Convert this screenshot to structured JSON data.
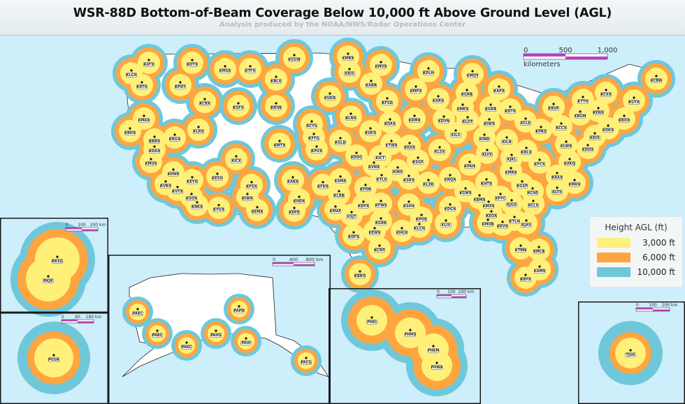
{
  "title": "WSR-88D Bottom-of-Beam Coverage Below 10,000 ft Above Ground Level (AGL)",
  "subtitle": "Analysis produced by the NOAA/NWS/Radar Operations Center",
  "legend": {
    "title": "Height AGL (ft)",
    "items": [
      {
        "label": "3,000 ft",
        "color": "#fff07a"
      },
      {
        "label": "6,000 ft",
        "color": "#ffa53f"
      },
      {
        "label": "10,000 ft",
        "color": "#6fc7da"
      }
    ]
  },
  "colors": {
    "ocean": "#cdeefb",
    "uncovered_land": "#ffffff",
    "scale_bar": "#c040c8"
  },
  "scale_bars": {
    "conus": {
      "ticks": [
        "0",
        "500",
        "1,000"
      ],
      "unit": "kilometers"
    },
    "korea": {
      "ticks": [
        "0",
        "100",
        "200 km"
      ]
    },
    "guam": {
      "ticks": [
        "0",
        "90",
        "180 km"
      ]
    },
    "alaska": {
      "ticks": [
        "0",
        "400",
        "800 km"
      ]
    },
    "hawaii": {
      "ticks": [
        "0",
        "100",
        "200 km"
      ]
    },
    "puerto_rico": {
      "ticks": [
        "0",
        "100",
        "200 km"
      ]
    },
    "southeast": {
      "ticks": [
        "0",
        "100",
        "200 km"
      ]
    }
  },
  "stations": {
    "conus": [
      "KATX",
      "KLGX",
      "KOTX",
      "KRTX",
      "KPDT",
      "KMSX",
      "KTFX",
      "KGGW",
      "KBLX",
      "KCBX",
      "KSFX",
      "KRIW",
      "KMAX",
      "KBHX",
      "KLRX",
      "KRGX",
      "KBBX",
      "KDAX",
      "KMUX",
      "KHNX",
      "KVBX",
      "KVTX",
      "KEYX",
      "KSOX",
      "KNKX",
      "KYUX",
      "KESX",
      "KICX",
      "KFSX",
      "KIWA",
      "KEMX",
      "KABX",
      "KHDX",
      "KEPZ",
      "KMTX",
      "KFTG",
      "KPUX",
      "KCYS",
      "KMBX",
      "KBIS",
      "KMVX",
      "KABR",
      "KUDX",
      "KFSD",
      "KMPX",
      "KDLH",
      "KMQT",
      "KGRB",
      "KARX",
      "KMKX",
      "KLNX",
      "KOAX",
      "KDMX",
      "KDVN",
      "KLOT",
      "KUEX",
      "KGLD",
      "KTWX",
      "KEAX",
      "KILX",
      "KLSX",
      "KAPX",
      "KGRR",
      "KDTX",
      "KIWX",
      "KCLE",
      "KBUF",
      "KTYX",
      "KCXX",
      "KGYX",
      "KCBW",
      "KENX",
      "KBGM",
      "KBOX",
      "KOKX",
      "KPBZ",
      "KCCX",
      "KDIX",
      "KDOX",
      "KLWX",
      "KIND",
      "KILN",
      "KRLX",
      "KLVX",
      "KJKL",
      "KFCX",
      "KAKQ",
      "KMRX",
      "KPAH",
      "KRAX",
      "KDDC",
      "KICT",
      "KSGF",
      "KVNX",
      "KINX",
      "KTLX",
      "KSRX",
      "KLZK",
      "KNQA",
      "KAMA",
      "KFDX",
      "KFDR",
      "KLBB",
      "KDYX",
      "KFWS",
      "KSHV",
      "KMAF",
      "KGRK",
      "KSJT",
      "KPOE",
      "KLCH",
      "KHGX",
      "KEWX",
      "KDFX",
      "KCRP",
      "KBRO",
      "KLIX",
      "KGWX",
      "KBMX",
      "KDGX",
      "KHTX",
      "KGSP",
      "KCAE",
      "KLTX",
      "KMHX",
      "KFFC",
      "KJGX",
      "KCLX",
      "KEOX",
      "KMXX",
      "KMOB",
      "KEVX",
      "KTLH",
      "KJAX",
      "KTBW",
      "KMLB",
      "KAMX",
      "KBYX"
    ],
    "alaska": [
      "PAEC",
      "PAPD",
      "PABC",
      "PAKC",
      "PAHG",
      "PAIH",
      "PACG"
    ],
    "hawaii": [
      "PHKI",
      "PHMO",
      "PHKM",
      "PHWA"
    ],
    "puerto_rico": [
      "TJUA"
    ],
    "korea": [
      "RKSG",
      "RKJK"
    ],
    "guam": [
      "PGUA"
    ]
  }
}
